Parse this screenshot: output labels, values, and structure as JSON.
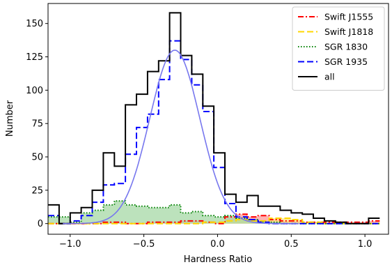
{
  "chart_data": {
    "type": "histogram",
    "xlabel": "Hardness Ratio",
    "ylabel": "Number",
    "xlim": [
      -1.15,
      1.16
    ],
    "ylim": [
      -8,
      165
    ],
    "xticks": [
      -1.0,
      -0.5,
      0.0,
      0.5,
      1.0
    ],
    "xtick_labels": [
      "−1.0",
      "−0.5",
      "0.0",
      "0.5",
      "1.0"
    ],
    "yticks": [
      0,
      25,
      50,
      75,
      100,
      125,
      150
    ],
    "ytick_labels": [
      "0",
      "25",
      "50",
      "75",
      "100",
      "125",
      "150"
    ],
    "bin_edges": [
      -1.15,
      -1.075,
      -1.0,
      -0.925,
      -0.85,
      -0.775,
      -0.7,
      -0.625,
      -0.55,
      -0.475,
      -0.4,
      -0.325,
      -0.25,
      -0.175,
      -0.1,
      -0.025,
      0.05,
      0.125,
      0.2,
      0.275,
      0.35,
      0.425,
      0.5,
      0.575,
      0.65,
      0.725,
      0.8,
      0.875,
      0.95,
      1.025,
      1.1
    ],
    "legend_position": "upper right",
    "series": [
      {
        "name": "Swift J1555",
        "color": "#ff0000",
        "linestyle": "dashdot",
        "filled": true,
        "fill_color": "#ff9999",
        "values": [
          0,
          0,
          0,
          0,
          0,
          1,
          1,
          0,
          0,
          1,
          1,
          1,
          2,
          2,
          1,
          0,
          5,
          7,
          5,
          6,
          3,
          2,
          2,
          1,
          1,
          1,
          1,
          1,
          1,
          2
        ]
      },
      {
        "name": "Swift J1818",
        "color": "#ffd700",
        "linestyle": "dashed",
        "filled": true,
        "fill_color": "#ffe680",
        "values": [
          0,
          0,
          0,
          0,
          0,
          0,
          0,
          0,
          0,
          0,
          0,
          0,
          0,
          0,
          1,
          1,
          2,
          3,
          2,
          2,
          4,
          4,
          3,
          1,
          1,
          0,
          0,
          0,
          0,
          0
        ]
      },
      {
        "name": "SGR 1830",
        "color": "#008000",
        "linestyle": "dotted",
        "filled": true,
        "fill_color": "#a6d8a6",
        "values": [
          5,
          5,
          1,
          8,
          10,
          14,
          17,
          14,
          13,
          12,
          12,
          14,
          8,
          9,
          6,
          5,
          6,
          4,
          3,
          1,
          1,
          0,
          0,
          0,
          0,
          0,
          0,
          0,
          0,
          0
        ]
      },
      {
        "name": "SGR 1935",
        "color": "#0000ff",
        "linestyle": "dashed",
        "filled": false,
        "values": [
          6,
          0,
          2,
          6,
          16,
          29,
          30,
          52,
          72,
          82,
          108,
          137,
          123,
          104,
          84,
          42,
          15,
          5,
          3,
          1,
          0,
          0,
          0,
          0,
          0,
          0,
          0,
          0,
          0,
          0
        ]
      },
      {
        "name": "all",
        "color": "#000000",
        "linestyle": "solid",
        "filled": false,
        "values": [
          14,
          0,
          8,
          12,
          25,
          53,
          43,
          89,
          97,
          114,
          122,
          158,
          126,
          112,
          88,
          53,
          22,
          16,
          21,
          13,
          13,
          10,
          8,
          7,
          4,
          2,
          1,
          0,
          0,
          4
        ]
      }
    ],
    "fit_curve": {
      "type": "gaussian",
      "color": "#7777ee",
      "amplitude": 130,
      "mean": -0.29,
      "sigma": 0.17
    }
  }
}
